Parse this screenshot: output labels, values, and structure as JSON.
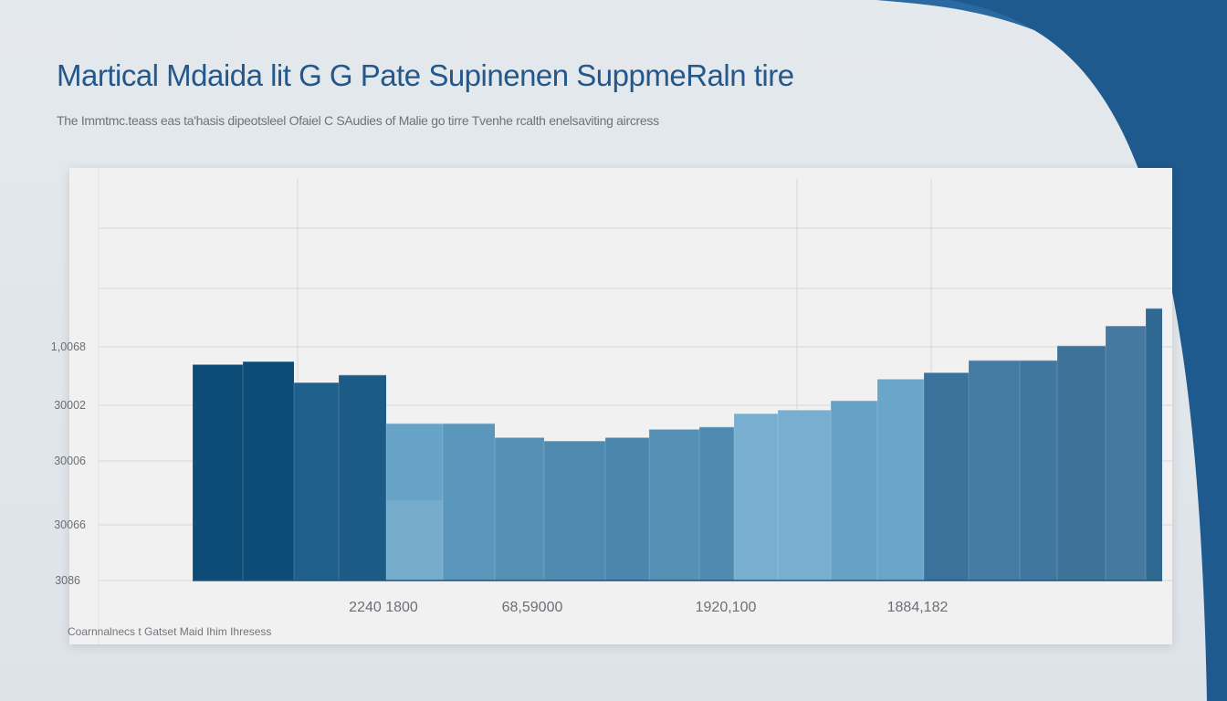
{
  "header": {
    "title": "Martical Mdaida lit G G Pate Supinenen SuppmeRaln tire",
    "subtitle": "The Immtmc.teass eas ta'hasis dipeotsleel Ofaiel C SAudies of Malie go tirre Tvenhe rcalth enelsaviting aircress"
  },
  "footer": {
    "note": "Coarnnalnecs t Gatset Maid Ihim Ihresess"
  },
  "colors": {
    "title": "#24588a",
    "accent_curve": "#2a6aa0",
    "panel": "#f1f1f1"
  },
  "chart_data": {
    "type": "bar",
    "title": "Martical Mdaida lit G G Pate Supinenen SuppmeRaln tire",
    "xlabel": "",
    "ylabel": "",
    "grid": true,
    "y_tick_labels": [
      "3086",
      "30066",
      "30006",
      "30002",
      "1,0068"
    ],
    "x_tick_labels": [
      "2240 1800",
      "68,59000",
      "1920,100",
      "1884,182"
    ],
    "ylim_tick_units": [
      0,
      5.8
    ],
    "values_tick_units": [
      3.7,
      3.75,
      3.39,
      3.52,
      2.69,
      2.69,
      2.45,
      2.39,
      2.45,
      2.59,
      2.63,
      2.86,
      2.92,
      3.08,
      3.45,
      3.56,
      3.77,
      3.77,
      4.02,
      4.36,
      4.66
    ],
    "bar_colors": [
      "#0e4c78",
      "#0e4c78",
      "#1f5f8b",
      "#1d5b87",
      "#66a3c6",
      "#5b96bd",
      "#5590b5",
      "#4f8ab1",
      "#4a86ae",
      "#5590b5",
      "#4f8bb1",
      "#78afd0",
      "#78afd0",
      "#66a2c6",
      "#6aa6ca",
      "#3a729b",
      "#437ba2",
      "#3f77a0",
      "#3d7299",
      "#45799f",
      "#2f6890"
    ]
  }
}
